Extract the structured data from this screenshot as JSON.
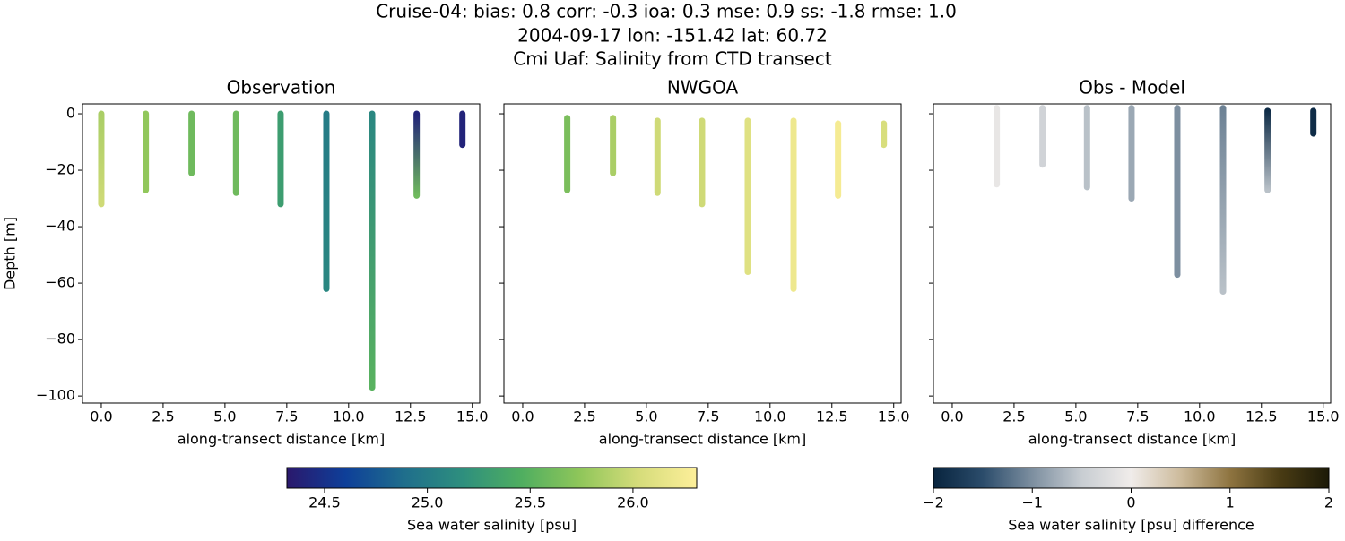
{
  "title": [
    "Cruise-04: bias: 0.8  corr: -0.3  ioa: 0.3  mse: 0.9  ss: -1.8  rmse: 1.0",
    "2004-09-17 lon: -151.42 lat: 60.72",
    "Cmi Uaf: Salinity from CTD transect"
  ],
  "chart_data": [
    {
      "type": "scatter",
      "title": "Observation",
      "xlabel": "along-transect distance [km]",
      "ylabel": "Depth [m]",
      "colorbar": 0,
      "xlim": [
        -0.76,
        15.3
      ],
      "ylim": [
        -102.5,
        3.5
      ],
      "xticks": [
        {
          "value": 0,
          "label": "0.0"
        },
        2.5,
        {
          "value": 5,
          "label": "5.0"
        },
        7.5,
        {
          "value": 10,
          "label": "10.0"
        },
        12.5,
        {
          "value": 15,
          "label": "15.0"
        }
      ],
      "yticks": [
        {
          "value": -100,
          "label": "−100"
        },
        {
          "value": -80,
          "label": "−80"
        },
        {
          "value": -60,
          "label": "−60"
        },
        {
          "value": -40,
          "label": "−40"
        },
        {
          "value": -20,
          "label": "−20"
        },
        0
      ],
      "profiles": [
        {
          "x": 0,
          "depth": [
            0,
            -32
          ],
          "values": [
            25.85,
            26.0
          ]
        },
        {
          "x": 1.8,
          "depth": [
            0,
            -27
          ],
          "values": [
            25.75,
            25.75
          ]
        },
        {
          "x": 3.65,
          "depth": [
            0,
            -21
          ],
          "values": [
            25.6,
            25.6
          ]
        },
        {
          "x": 5.45,
          "depth": [
            0,
            -28
          ],
          "values": [
            25.6,
            25.6
          ]
        },
        {
          "x": 7.25,
          "depth": [
            0,
            -32
          ],
          "values": [
            25.3,
            25.3
          ]
        },
        {
          "x": 9.1,
          "depth": [
            0,
            -62
          ],
          "values": [
            25.0,
            25.1
          ]
        },
        {
          "x": 10.95,
          "depth": [
            0,
            -97
          ],
          "values": [
            25.1,
            25.5
          ]
        },
        {
          "x": 12.75,
          "depth": [
            0,
            -29
          ],
          "values": [
            24.4,
            25.6
          ]
        },
        {
          "x": 14.6,
          "depth": [
            0,
            -11
          ],
          "values": [
            24.4,
            24.4
          ]
        }
      ]
    },
    {
      "type": "scatter",
      "title": "NWGOA",
      "xlabel": "along-transect distance [km]",
      "colorbar": 0,
      "xlim": [
        -0.76,
        15.3
      ],
      "ylim": [
        -102.5,
        3.5
      ],
      "xticks": [
        {
          "value": 0,
          "label": "0.0"
        },
        2.5,
        {
          "value": 5,
          "label": "5.0"
        },
        7.5,
        {
          "value": 10,
          "label": "10.0"
        },
        12.5,
        {
          "value": 15,
          "label": "15.0"
        }
      ],
      "profiles": [
        {
          "x": 1.8,
          "depth": [
            -1.5,
            -27
          ],
          "values": [
            25.65,
            25.65
          ]
        },
        {
          "x": 3.65,
          "depth": [
            -1.5,
            -21
          ],
          "values": [
            25.85,
            25.85
          ]
        },
        {
          "x": 5.45,
          "depth": [
            -2.5,
            -28
          ],
          "values": [
            26.0,
            26.0
          ]
        },
        {
          "x": 7.25,
          "depth": [
            -2.5,
            -32
          ],
          "values": [
            26.0,
            26.0
          ]
        },
        {
          "x": 9.1,
          "depth": [
            -2.5,
            -56
          ],
          "values": [
            26.1,
            26.1
          ]
        },
        {
          "x": 10.95,
          "depth": [
            -2.5,
            -62
          ],
          "values": [
            26.2,
            26.2
          ]
        },
        {
          "x": 12.75,
          "depth": [
            -3.5,
            -29
          ],
          "values": [
            26.25,
            26.25
          ]
        },
        {
          "x": 14.6,
          "depth": [
            -3.5,
            -11
          ],
          "values": [
            26.05,
            26.05
          ]
        }
      ]
    },
    {
      "type": "scatter",
      "title": "Obs - Model",
      "xlabel": "along-transect distance [km]",
      "colorbar": 1,
      "xlim": [
        -0.76,
        15.3
      ],
      "ylim": [
        -102.5,
        3.5
      ],
      "xticks": [
        {
          "value": 0,
          "label": "0.0"
        },
        2.5,
        {
          "value": 5,
          "label": "5.0"
        },
        7.5,
        {
          "value": 10,
          "label": "10.0"
        },
        12.5,
        {
          "value": 15,
          "label": "15.0"
        }
      ],
      "profiles": [
        {
          "x": 1.8,
          "depth": [
            2,
            -25
          ],
          "values": [
            -0.1,
            -0.1
          ]
        },
        {
          "x": 3.65,
          "depth": [
            2,
            -18
          ],
          "values": [
            -0.4,
            -0.4
          ]
        },
        {
          "x": 5.45,
          "depth": [
            2,
            -26
          ],
          "values": [
            -0.6,
            -0.6
          ]
        },
        {
          "x": 7.25,
          "depth": [
            2,
            -30
          ],
          "values": [
            -0.8,
            -0.8
          ]
        },
        {
          "x": 9.1,
          "depth": [
            2,
            -57
          ],
          "values": [
            -1.0,
            -1.0
          ]
        },
        {
          "x": 10.95,
          "depth": [
            2,
            -63
          ],
          "values": [
            -1.1,
            -0.6
          ]
        },
        {
          "x": 12.75,
          "depth": [
            1,
            -27
          ],
          "values": [
            -1.9,
            -0.6
          ]
        },
        {
          "x": 14.6,
          "depth": [
            1,
            -7
          ],
          "values": [
            -1.9,
            -1.9
          ]
        }
      ]
    }
  ],
  "colorbars": [
    {
      "label": "Sea water salinity [psu]",
      "lim": [
        24.317,
        26.31
      ],
      "ticks": [
        24.5,
        {
          "value": 25,
          "label": "25.0"
        },
        25.5,
        {
          "value": 26,
          "label": "26.0"
        }
      ],
      "colors": [
        "#2a186c",
        "#0e3f99",
        "#1f6e8c",
        "#2e8f7e",
        "#4fae60",
        "#8fc65a",
        "#d5dc7a",
        "#fdef9a"
      ]
    },
    {
      "label": "Sea water salinity [psu] difference",
      "lim": [
        -2,
        2
      ],
      "ticks": [
        {
          "value": -2,
          "label": "−2"
        },
        {
          "value": -1,
          "label": "−1"
        },
        0,
        1,
        2
      ],
      "colors": [
        "#08243e",
        "#2b4c6b",
        "#7d8fa0",
        "#c8cdd2",
        "#f0ecea",
        "#cdbb9c",
        "#8e7440",
        "#4a3c14",
        "#1c1a08"
      ]
    }
  ]
}
